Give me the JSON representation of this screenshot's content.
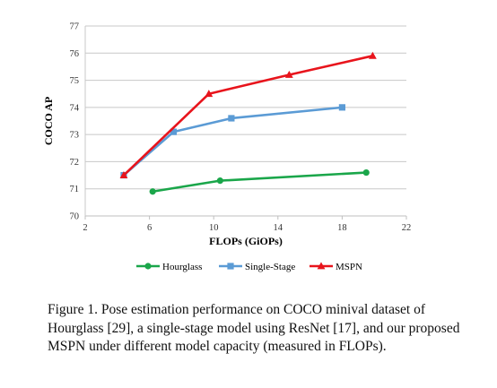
{
  "chart_data": {
    "type": "line",
    "title": "",
    "xlabel": "FLOPs (GiOPs)",
    "ylabel": "COCO AP",
    "xlim": [
      2,
      22
    ],
    "ylim": [
      70,
      77
    ],
    "xticks": [
      2,
      6,
      10,
      14,
      18,
      22
    ],
    "yticks": [
      70,
      71,
      72,
      73,
      74,
      75,
      76,
      77
    ],
    "grid": "horizontal",
    "legend_position": "bottom",
    "series": [
      {
        "name": "Hourglass",
        "color": "#1aa64a",
        "marker": "circle",
        "x": [
          6.2,
          10.4,
          19.5
        ],
        "y": [
          70.9,
          71.3,
          71.6
        ]
      },
      {
        "name": "Single-Stage",
        "color": "#5b9bd5",
        "marker": "square",
        "x": [
          4.4,
          7.5,
          11.1,
          18.0
        ],
        "y": [
          71.5,
          73.1,
          73.6,
          74.0
        ]
      },
      {
        "name": "MSPN",
        "color": "#e8141c",
        "marker": "triangle",
        "x": [
          4.4,
          9.7,
          14.7,
          19.9
        ],
        "y": [
          71.5,
          74.5,
          75.2,
          75.9
        ]
      }
    ]
  },
  "caption": "Figure 1. Pose estimation performance on COCO minival dataset of Hourglass [29], a single-stage model using ResNet [17], and our proposed MSPN under different model capacity (measured in FLOPs)."
}
